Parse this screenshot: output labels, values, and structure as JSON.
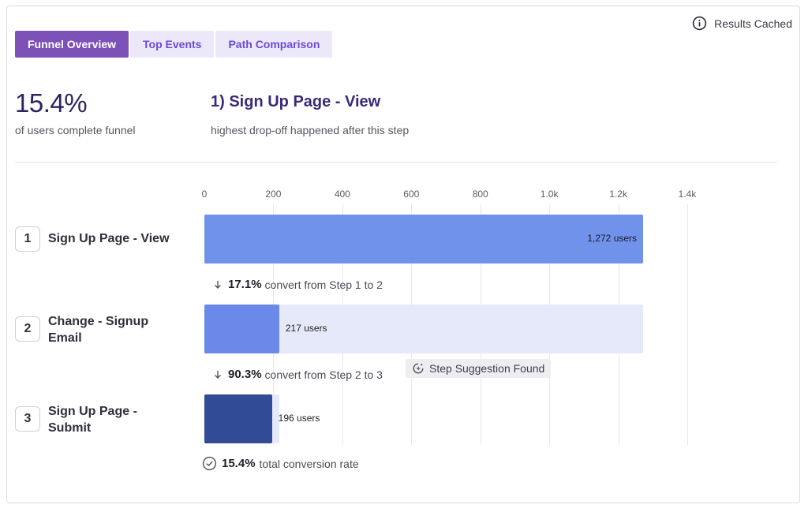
{
  "header": {
    "cached_label": "Results Cached"
  },
  "tabs": [
    {
      "label": "Funnel Overview",
      "active": true
    },
    {
      "label": "Top Events",
      "active": false
    },
    {
      "label": "Path Comparison",
      "active": false
    }
  ],
  "summary": {
    "conversion_value": "15.4%",
    "conversion_caption": "of users complete funnel",
    "dropoff_title": "1) Sign Up Page - View",
    "dropoff_caption": "highest drop-off happened after this step"
  },
  "chart_data": {
    "type": "bar",
    "orientation": "horizontal",
    "x_ticks": [
      0,
      200,
      400,
      600,
      800,
      1000,
      1200,
      1400
    ],
    "x_tick_labels": [
      "0",
      "200",
      "400",
      "600",
      "800",
      "1.0k",
      "1.2k",
      "1.4k"
    ],
    "xlim": [
      0,
      1400
    ],
    "grid": true,
    "categories": [
      "Sign Up Page - View",
      "Change - Signup Email",
      "Sign Up Page - Submit"
    ],
    "step_numbers": [
      "1",
      "2",
      "3"
    ],
    "values": [
      1272,
      217,
      196
    ],
    "value_labels": [
      "1,272 users",
      "217 users",
      "196 users"
    ],
    "track_reference": [
      1272,
      1272,
      217
    ],
    "bar_colors": [
      "#7092ea",
      "#6a89e8",
      "#314b96"
    ],
    "track_color": "#e6e9f9",
    "conversions": [
      {
        "pct": "17.1%",
        "text": "convert from Step 1 to 2"
      },
      {
        "pct": "90.3%",
        "text": "convert from Step 2 to 3"
      }
    ],
    "suggestion_label": "Step Suggestion Found",
    "total_pct": "15.4%",
    "total_text": "total conversion rate"
  }
}
